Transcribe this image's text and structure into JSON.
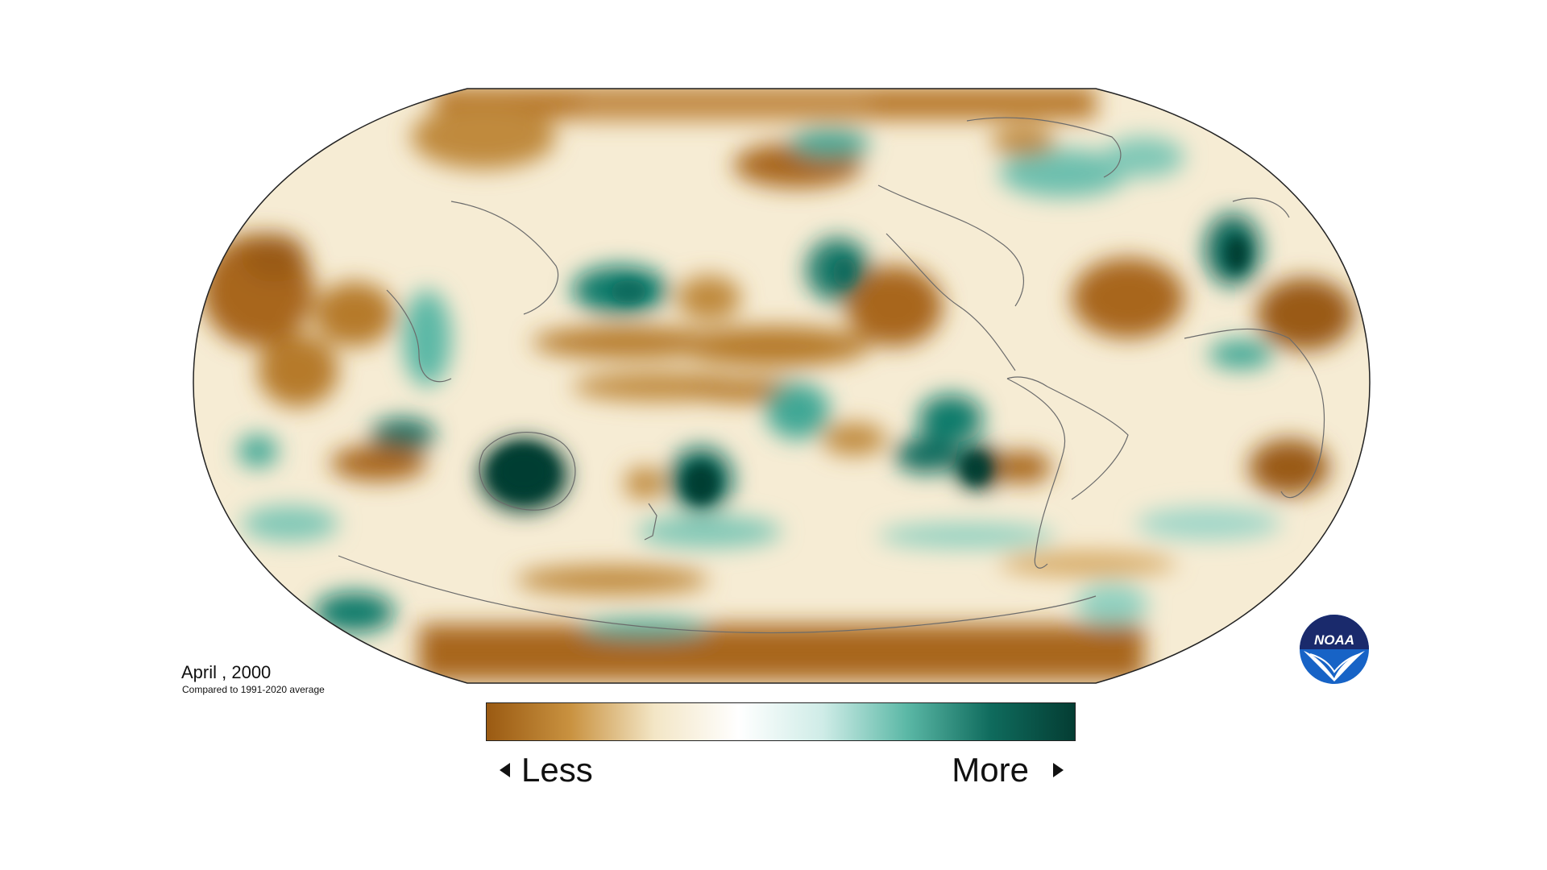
{
  "map": {
    "title": "April , 2000",
    "subtitle": "Compared to 1991-2020 average",
    "projection": "Robinson",
    "variable_scale_colors": [
      "#9a5a12",
      "#c99240",
      "#f3e6c6",
      "#ffffff",
      "#cfece7",
      "#5bb8a6",
      "#0f6b5d",
      "#043d33"
    ]
  },
  "legend": {
    "less_label": "Less",
    "more_label": "More"
  },
  "logo": {
    "text": "NOAA",
    "primary_color": "#1763c6",
    "dark_color": "#1a2a6c"
  }
}
